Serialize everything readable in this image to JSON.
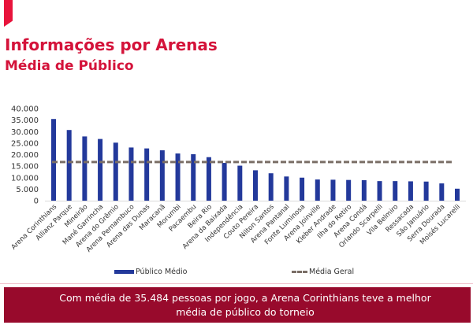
{
  "header": {
    "title": "Informações por Arenas",
    "subtitle": "Média de Público"
  },
  "colors": {
    "accent": "#d4133a",
    "bar": "#23399b",
    "average_line": "#7a6e66",
    "banner": "#980a2c"
  },
  "chart_data": {
    "type": "bar",
    "title": "Média de Público",
    "xlabel": "",
    "ylabel": "",
    "ylim": [
      0,
      40000
    ],
    "yticks": [
      0,
      5000,
      10000,
      15000,
      20000,
      25000,
      30000,
      35000,
      40000
    ],
    "ytick_labels": [
      "0",
      "5.000",
      "10.000",
      "15.000",
      "20.000",
      "25.000",
      "30.000",
      "35.000",
      "40.000"
    ],
    "grid": false,
    "legend_position": "bottom",
    "categories": [
      "Arena Corinthians",
      "Allianz Parque",
      "Mineirão",
      "Mané Garrincha",
      "Arena do Grêmio",
      "Arena Pernambuco",
      "Arena das Dunas",
      "Maracanã",
      "Morumbi",
      "Pacaembu",
      "Beira Rio",
      "Arena da Baixada",
      "Independência",
      "Couto Pereira",
      "Nilton Santos",
      "Arena Pantanal",
      "Fonte Luminosa",
      "Arena Joinville",
      "Kleber Andrade",
      "Ilha do Retiro",
      "Arena Condá",
      "Orlando Scarpelli",
      "Vila Belmiro",
      "Ressacada",
      "São Januário",
      "Serra Dourada",
      "Moisés Lucarelli"
    ],
    "series": [
      {
        "name": "Público Médio",
        "type": "bar",
        "values": [
          35484,
          30700,
          27900,
          26800,
          25200,
          23100,
          22700,
          21900,
          20500,
          20200,
          18900,
          16400,
          15200,
          13200,
          11900,
          10500,
          10000,
          9200,
          9100,
          9000,
          8900,
          8500,
          8500,
          8400,
          8300,
          7500,
          5200
        ]
      },
      {
        "name": "Média Geral",
        "type": "line",
        "style": "dashed",
        "value": 16800
      }
    ]
  },
  "legend": {
    "bar_label": "Público Médio",
    "line_label": "Média Geral"
  },
  "banner": {
    "text": "Com média de 35.484 pessoas por jogo, a Arena Corinthians teve a melhor média de público do torneio"
  }
}
